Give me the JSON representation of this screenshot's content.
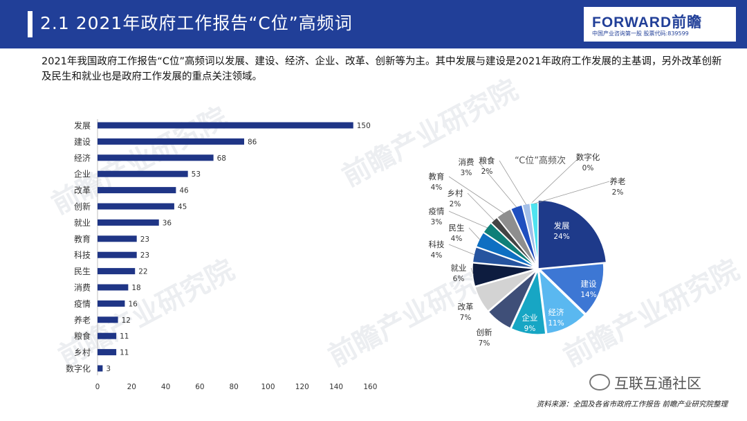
{
  "header": {
    "title": "2.1 2021年政府工作报告“C位”高频词",
    "brand": "FORWARD前瞻",
    "brand_sub": "中国产业咨询第一股 股票代码:839599"
  },
  "intro": "2021年我国政府工作报告“C位”高频词以发展、建设、经济、企业、改革、创新等为主。其中发展与建设是2021年政府工作发展的主基调，另外改革创新及民生和就业也是政府工作发展的重点关注领域。",
  "watermark_text": "前瞻产业研究院",
  "chart_data": [
    {
      "type": "bar",
      "orientation": "horizontal",
      "categories": [
        "发展",
        "建设",
        "经济",
        "企业",
        "改革",
        "创新",
        "就业",
        "教育",
        "科技",
        "民生",
        "消费",
        "疫情",
        "养老",
        "粮食",
        "乡村",
        "数字化"
      ],
      "values": [
        150,
        86,
        68,
        53,
        46,
        45,
        36,
        23,
        23,
        22,
        18,
        16,
        12,
        11,
        11,
        3
      ],
      "xlim": [
        0,
        160
      ],
      "xticks": [
        "0",
        "20",
        "40",
        "60",
        "80",
        "100",
        "120",
        "140",
        "160"
      ],
      "color": "#1f3586"
    },
    {
      "type": "pie",
      "title": "“C位”高频次",
      "labels": [
        "发展",
        "建设",
        "经济",
        "企业",
        "创新",
        "改革",
        "就业",
        "科技",
        "民生",
        "疫情",
        "乡村",
        "教育",
        "消费",
        "粮食",
        "数字化",
        "养老"
      ],
      "values": [
        24,
        14,
        11,
        9,
        7,
        7,
        6,
        4,
        4,
        3,
        2,
        4,
        3,
        2,
        0,
        2
      ],
      "pct_labels": [
        "24%",
        "14%",
        "11%",
        "9%",
        "7%",
        "7%",
        "6%",
        "4%",
        "4%",
        "3%",
        "2%",
        "4%",
        "3%",
        "2%",
        "0%",
        "2%"
      ],
      "colors": [
        "#1e3a8a",
        "#3d77d4",
        "#5ab8f0",
        "#17a6c4",
        "#3f4f78",
        "#d3d3d3",
        "#0d1c3f",
        "#26549f",
        "#0e6fc2",
        "#0f7f78",
        "#444444",
        "#8e8e8e",
        "#1f4fbf",
        "#a3bfe8",
        "#1a3c78",
        "#4fe3f0"
      ]
    }
  ],
  "footer": {
    "wechat": "互联互通社区",
    "source": "资料来源：全国及各省市政府工作报告 前瞻产业研究院整理"
  }
}
